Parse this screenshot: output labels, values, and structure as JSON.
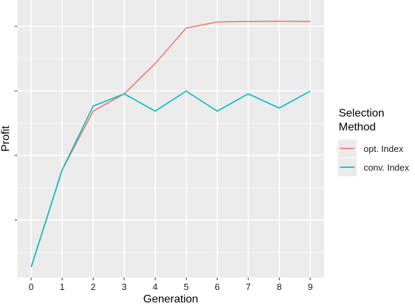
{
  "chart_data": {
    "type": "line",
    "xlabel": "Generation",
    "ylabel": "Profit",
    "x": [
      0,
      1,
      2,
      3,
      4,
      5,
      6,
      7,
      8,
      9
    ],
    "ylim": [
      0,
      1
    ],
    "y_ticks_labeled": false,
    "grid": true,
    "legend_placement": "right",
    "legend_title": "Selection\nMethod",
    "series": [
      {
        "name": "opt. Index",
        "color": "#F8766D",
        "values": [
          0.0,
          0.384,
          0.616,
          0.684,
          0.804,
          0.944,
          0.968,
          0.97,
          0.971,
          0.97
        ]
      },
      {
        "name": "conv. Index",
        "color": "#00BFC4",
        "values": [
          0.0,
          0.384,
          0.636,
          0.684,
          0.616,
          0.695,
          0.616,
          0.684,
          0.628,
          0.695
        ]
      }
    ]
  }
}
